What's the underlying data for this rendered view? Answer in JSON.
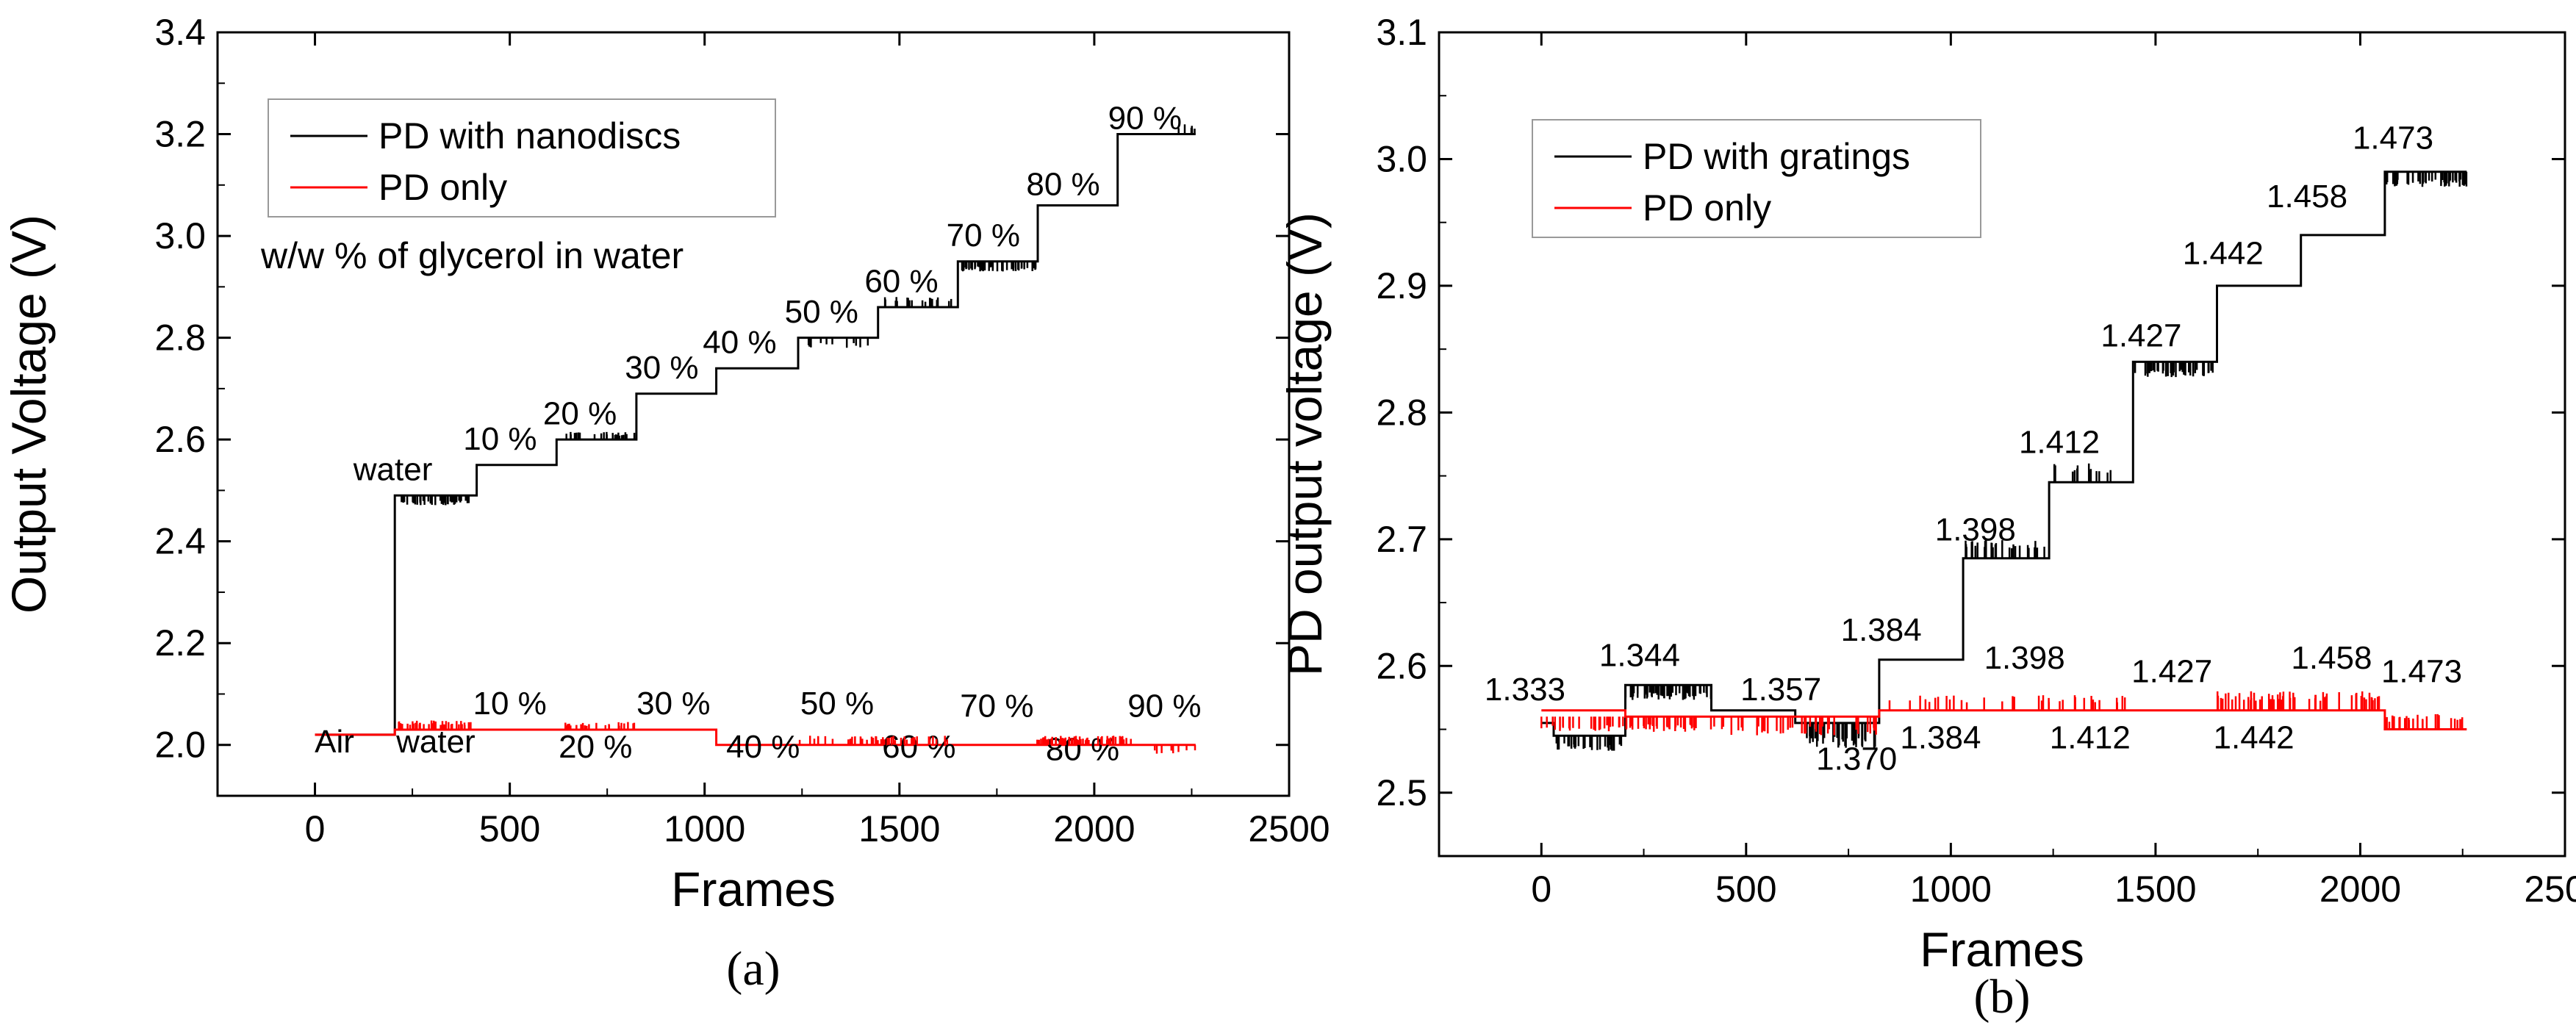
{
  "chart_data": [
    {
      "type": "line",
      "panel": "a",
      "caption": "(a)",
      "xlabel": "Frames",
      "ylabel": "Output Voltage (V)",
      "xlim": [
        -250,
        2500
      ],
      "ylim": [
        1.9,
        3.4
      ],
      "xticks": [
        0,
        500,
        1000,
        1500,
        2000,
        2500
      ],
      "yticks": [
        2.0,
        2.2,
        2.4,
        2.6,
        2.8,
        3.0,
        3.2,
        3.4
      ],
      "legend_position": "top-left",
      "legend_note": "w/w % of glycerol in water",
      "series": [
        {
          "name": "PD with nanodiscs",
          "color": "#000000",
          "x": [
            0,
            205,
            205,
            415,
            415,
            620,
            620,
            825,
            825,
            1030,
            1030,
            1240,
            1240,
            1445,
            1445,
            1650,
            1650,
            1855,
            1855,
            2060,
            2060,
            2260
          ],
          "y": [
            2.02,
            2.02,
            2.49,
            2.49,
            2.55,
            2.55,
            2.6,
            2.6,
            2.69,
            2.69,
            2.74,
            2.74,
            2.8,
            2.8,
            2.86,
            2.86,
            2.95,
            2.95,
            3.06,
            3.06,
            3.2,
            3.2
          ]
        },
        {
          "name": "PD only",
          "color": "#ff0000",
          "x": [
            0,
            205,
            205,
            1030,
            1030,
            2260
          ],
          "y": [
            2.02,
            2.02,
            2.03,
            2.03,
            2.0,
            2.0
          ]
        }
      ],
      "annotations_black": [
        {
          "text": "water",
          "x": 200,
          "y": 2.52
        },
        {
          "text": "10 %",
          "x": 475,
          "y": 2.58
        },
        {
          "text": "20 %",
          "x": 680,
          "y": 2.63
        },
        {
          "text": "30 %",
          "x": 890,
          "y": 2.72
        },
        {
          "text": "40 %",
          "x": 1090,
          "y": 2.77
        },
        {
          "text": "50 %",
          "x": 1300,
          "y": 2.83
        },
        {
          "text": "60 %",
          "x": 1505,
          "y": 2.89
        },
        {
          "text": "70 %",
          "x": 1715,
          "y": 2.98
        },
        {
          "text": "80 %",
          "x": 1920,
          "y": 3.08
        },
        {
          "text": "90 %",
          "x": 2130,
          "y": 3.21
        }
      ],
      "annotations_red": [
        {
          "text": "Air",
          "x": 50,
          "y": 1.985
        },
        {
          "text": "water",
          "x": 310,
          "y": 1.985
        },
        {
          "text": "10 %",
          "x": 500,
          "y": 2.06
        },
        {
          "text": "20 %",
          "x": 720,
          "y": 1.975
        },
        {
          "text": "30 %",
          "x": 920,
          "y": 2.06
        },
        {
          "text": "40 %",
          "x": 1150,
          "y": 1.975
        },
        {
          "text": "50 %",
          "x": 1340,
          "y": 2.06
        },
        {
          "text": "60 %",
          "x": 1550,
          "y": 1.975
        },
        {
          "text": "70 %",
          "x": 1750,
          "y": 2.055
        },
        {
          "text": "80 %",
          "x": 1970,
          "y": 1.97
        },
        {
          "text": "90 %",
          "x": 2180,
          "y": 2.055
        }
      ]
    },
    {
      "type": "line",
      "panel": "b",
      "caption": "(b)",
      "xlabel": "Frames",
      "ylabel": "PD output voltage (V)",
      "xlim": [
        -250,
        2500
      ],
      "ylim": [
        2.45,
        3.1
      ],
      "xticks": [
        0,
        500,
        1000,
        1500,
        2000,
        2500
      ],
      "yticks": [
        2.5,
        2.6,
        2.7,
        2.8,
        2.9,
        3.0,
        3.1
      ],
      "legend_position": "top-left",
      "series": [
        {
          "name": "PD with gratings",
          "color": "#000000",
          "x": [
            0,
            30,
            30,
            205,
            205,
            415,
            415,
            620,
            620,
            825,
            825,
            1030,
            1030,
            1240,
            1240,
            1445,
            1445,
            1650,
            1650,
            1855,
            1855,
            2060,
            2060,
            2260
          ],
          "y": [
            2.555,
            2.555,
            2.545,
            2.545,
            2.585,
            2.585,
            2.565,
            2.565,
            2.555,
            2.555,
            2.605,
            2.605,
            2.685,
            2.685,
            2.745,
            2.745,
            2.84,
            2.84,
            2.9,
            2.9,
            2.94,
            2.94,
            2.99,
            2.99
          ]
        },
        {
          "name": "PD only",
          "color": "#ff0000",
          "x": [
            0,
            205,
            205,
            825,
            825,
            2060,
            2060,
            2260
          ],
          "y": [
            2.565,
            2.565,
            2.56,
            2.56,
            2.565,
            2.565,
            2.55,
            2.55
          ]
        }
      ],
      "annotations_black_above": [
        {
          "text": "1.333",
          "x": -40,
          "y": 2.573
        },
        {
          "text": "1.344",
          "x": 240,
          "y": 2.6
        },
        {
          "text": "1.357",
          "x": 585,
          "y": 2.573
        },
        {
          "text": "1.384",
          "x": 830,
          "y": 2.62
        },
        {
          "text": "1.398",
          "x": 1060,
          "y": 2.699
        },
        {
          "text": "1.412",
          "x": 1265,
          "y": 2.768
        },
        {
          "text": "1.427",
          "x": 1465,
          "y": 2.852
        },
        {
          "text": "1.442",
          "x": 1665,
          "y": 2.917
        },
        {
          "text": "1.458",
          "x": 1870,
          "y": 2.962
        },
        {
          "text": "1.473",
          "x": 2080,
          "y": 3.008
        }
      ],
      "annotations_red_labels": [
        {
          "text": "1.370",
          "x": 770,
          "y": 2.518
        },
        {
          "text": "1.384",
          "x": 975,
          "y": 2.535
        },
        {
          "text": "1.398",
          "x": 1180,
          "y": 2.598
        },
        {
          "text": "1.412",
          "x": 1340,
          "y": 2.535
        },
        {
          "text": "1.427",
          "x": 1540,
          "y": 2.587
        },
        {
          "text": "1.442",
          "x": 1740,
          "y": 2.535
        },
        {
          "text": "1.458",
          "x": 1930,
          "y": 2.598
        },
        {
          "text": "1.473",
          "x": 2150,
          "y": 2.587
        }
      ]
    }
  ]
}
